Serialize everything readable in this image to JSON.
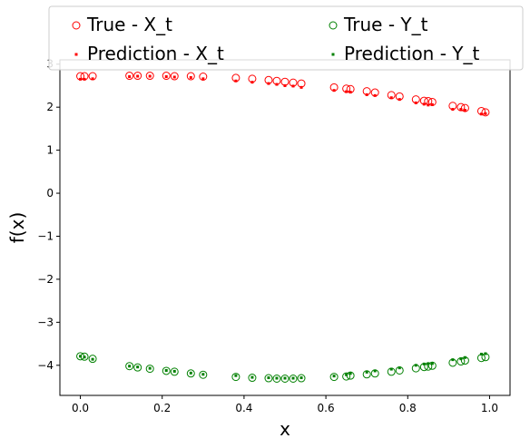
{
  "chart_data": {
    "type": "scatter",
    "xlabel": "x",
    "ylabel": "f(x)",
    "xlim": [
      -0.05,
      1.05
    ],
    "ylim": [
      -4.7,
      3.1
    ],
    "x_ticks": [
      "0.0",
      "0.2",
      "0.4",
      "0.6",
      "0.8",
      "1.0"
    ],
    "y_ticks": [
      "−4",
      "−3",
      "−2",
      "−1",
      "0",
      "1",
      "2",
      "3"
    ],
    "grid": false,
    "legend_position": "top",
    "series": [
      {
        "name": "True - X_t",
        "color": "#ff0000",
        "marker": "hollow-circle",
        "x": [
          0.0,
          0.01,
          0.03,
          0.12,
          0.14,
          0.17,
          0.21,
          0.23,
          0.27,
          0.3,
          0.38,
          0.42,
          0.46,
          0.48,
          0.5,
          0.52,
          0.54,
          0.62,
          0.65,
          0.66,
          0.7,
          0.72,
          0.76,
          0.78,
          0.82,
          0.84,
          0.85,
          0.86,
          0.91,
          0.93,
          0.94,
          0.98,
          0.99
        ],
        "y": [
          2.72,
          2.72,
          2.72,
          2.73,
          2.73,
          2.73,
          2.73,
          2.72,
          2.72,
          2.71,
          2.68,
          2.66,
          2.63,
          2.61,
          2.59,
          2.57,
          2.55,
          2.46,
          2.43,
          2.42,
          2.37,
          2.34,
          2.28,
          2.25,
          2.18,
          2.15,
          2.14,
          2.12,
          2.03,
          2.0,
          1.98,
          1.91,
          1.88
        ]
      },
      {
        "name": "Prediction - X_t",
        "color": "#ff0000",
        "marker": "dot",
        "x": [
          0.0,
          0.01,
          0.03,
          0.12,
          0.14,
          0.17,
          0.21,
          0.23,
          0.27,
          0.3,
          0.38,
          0.42,
          0.46,
          0.48,
          0.5,
          0.52,
          0.54,
          0.62,
          0.65,
          0.66,
          0.7,
          0.72,
          0.76,
          0.78,
          0.82,
          0.84,
          0.85,
          0.86,
          0.91,
          0.93,
          0.94,
          0.98,
          0.99
        ],
        "y": [
          2.65,
          2.65,
          2.66,
          2.71,
          2.72,
          2.72,
          2.71,
          2.7,
          2.69,
          2.66,
          2.61,
          2.58,
          2.55,
          2.53,
          2.5,
          2.49,
          2.46,
          2.39,
          2.36,
          2.35,
          2.29,
          2.27,
          2.22,
          2.18,
          2.1,
          2.07,
          2.05,
          2.06,
          1.95,
          1.95,
          1.93,
          1.84,
          1.85
        ]
      },
      {
        "name": "True - Y_t",
        "color": "#008000",
        "marker": "hollow-circle",
        "x": [
          0.0,
          0.01,
          0.03,
          0.12,
          0.14,
          0.17,
          0.21,
          0.23,
          0.27,
          0.3,
          0.38,
          0.42,
          0.46,
          0.48,
          0.5,
          0.52,
          0.54,
          0.62,
          0.65,
          0.66,
          0.7,
          0.72,
          0.76,
          0.78,
          0.82,
          0.84,
          0.85,
          0.86,
          0.91,
          0.93,
          0.94,
          0.98,
          0.99
        ],
        "y": [
          -3.79,
          -3.8,
          -3.85,
          -4.02,
          -4.05,
          -4.08,
          -4.13,
          -4.15,
          -4.19,
          -4.22,
          -4.27,
          -4.29,
          -4.3,
          -4.31,
          -4.31,
          -4.31,
          -4.3,
          -4.27,
          -4.26,
          -4.24,
          -4.21,
          -4.19,
          -4.15,
          -4.12,
          -4.07,
          -4.04,
          -4.03,
          -4.01,
          -3.94,
          -3.91,
          -3.89,
          -3.83,
          -3.81
        ]
      },
      {
        "name": "Prediction - Y_t",
        "color": "#008000",
        "marker": "dot",
        "x": [
          0.0,
          0.01,
          0.03,
          0.12,
          0.14,
          0.17,
          0.21,
          0.23,
          0.27,
          0.3,
          0.38,
          0.42,
          0.46,
          0.48,
          0.5,
          0.52,
          0.54,
          0.62,
          0.65,
          0.66,
          0.7,
          0.72,
          0.76,
          0.78,
          0.82,
          0.84,
          0.85,
          0.86,
          0.91,
          0.93,
          0.94,
          0.98,
          0.99
        ],
        "y": [
          -3.79,
          -3.81,
          -3.86,
          -4.02,
          -4.04,
          -4.07,
          -4.12,
          -4.14,
          -4.18,
          -4.21,
          -4.24,
          -4.28,
          -4.29,
          -4.3,
          -4.3,
          -4.3,
          -4.29,
          -4.25,
          -4.22,
          -4.19,
          -4.16,
          -4.13,
          -4.09,
          -4.06,
          -4.0,
          -3.97,
          -3.96,
          -3.96,
          -3.87,
          -3.85,
          -3.82,
          -3.74,
          -3.73
        ]
      }
    ]
  }
}
